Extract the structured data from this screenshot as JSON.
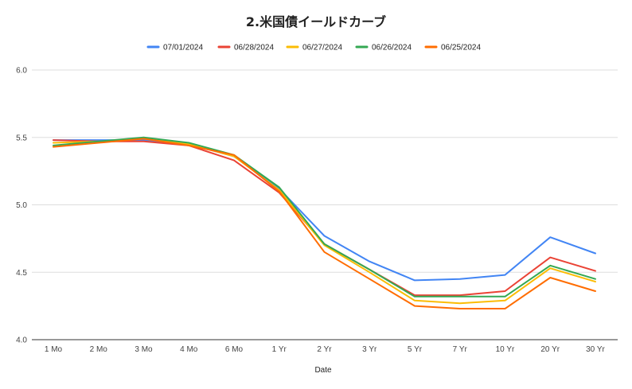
{
  "chart_data": {
    "type": "line",
    "title": "2.米国債イールドカーブ",
    "xlabel": "Date",
    "ylabel": "",
    "categories": [
      "1 Mo",
      "2 Mo",
      "3 Mo",
      "4 Mo",
      "6 Mo",
      "1 Yr",
      "2 Yr",
      "3 Yr",
      "5 Yr",
      "7 Yr",
      "10 Yr",
      "20 Yr",
      "30 Yr"
    ],
    "ylim": [
      4.0,
      6.0
    ],
    "yticks": [
      "4.0",
      "4.5",
      "5.0",
      "5.5",
      "6.0"
    ],
    "grid": true,
    "legend_position": "top",
    "series": [
      {
        "name": "07/01/2024",
        "color": "#4285F4",
        "values": [
          5.48,
          5.48,
          5.48,
          5.45,
          5.36,
          5.12,
          4.77,
          4.58,
          4.44,
          4.45,
          4.48,
          4.76,
          4.64
        ]
      },
      {
        "name": "06/28/2024",
        "color": "#EA4335",
        "values": [
          5.48,
          5.47,
          5.47,
          5.44,
          5.33,
          5.09,
          4.71,
          4.52,
          4.33,
          4.33,
          4.36,
          4.61,
          4.51
        ]
      },
      {
        "name": "06/27/2024",
        "color": "#FBBC04",
        "values": [
          5.46,
          5.47,
          5.49,
          5.45,
          5.36,
          5.11,
          4.7,
          4.5,
          4.29,
          4.27,
          4.29,
          4.53,
          4.43
        ]
      },
      {
        "name": "06/26/2024",
        "color": "#34A853",
        "values": [
          5.44,
          5.47,
          5.5,
          5.46,
          5.37,
          5.13,
          4.71,
          4.52,
          4.32,
          4.32,
          4.32,
          4.55,
          4.45
        ]
      },
      {
        "name": "06/25/2024",
        "color": "#FF6D01",
        "values": [
          5.43,
          5.46,
          5.49,
          5.44,
          5.37,
          5.1,
          4.65,
          4.45,
          4.25,
          4.23,
          4.23,
          4.46,
          4.36
        ]
      }
    ]
  }
}
